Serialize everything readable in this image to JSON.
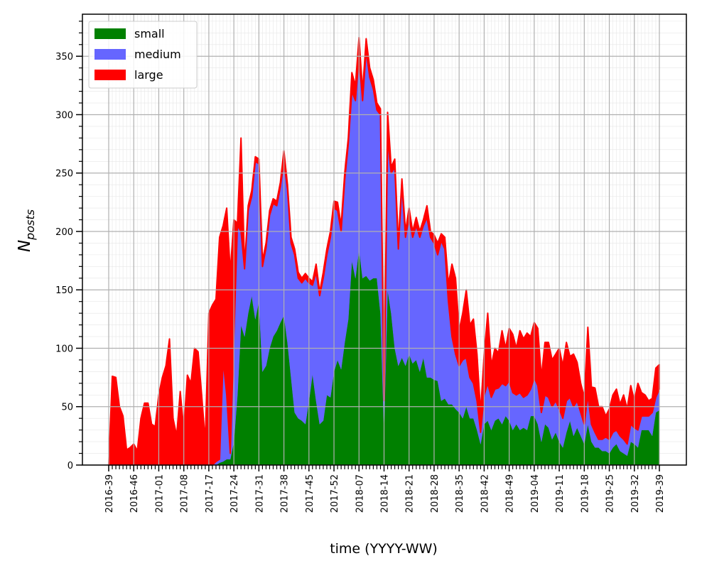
{
  "chart_data": {
    "type": "stacked_area",
    "xlabel": "time (YYYY-WW)",
    "ylabel": {
      "main": "N",
      "sub": "posts"
    },
    "categories": [
      "2016-39",
      null,
      null,
      null,
      null,
      null,
      null,
      "2016-46",
      null,
      null,
      null,
      null,
      null,
      null,
      "2017-01",
      null,
      null,
      null,
      null,
      null,
      null,
      "2017-08",
      null,
      null,
      null,
      null,
      null,
      null,
      "2017-17",
      null,
      null,
      null,
      null,
      null,
      null,
      "2017-24",
      null,
      null,
      null,
      null,
      null,
      null,
      "2017-31",
      null,
      null,
      null,
      null,
      null,
      null,
      "2017-38",
      null,
      null,
      null,
      null,
      null,
      null,
      "2017-45",
      null,
      null,
      null,
      null,
      null,
      null,
      "2017-52",
      null,
      null,
      null,
      null,
      null,
      null,
      "2018-07",
      null,
      null,
      null,
      null,
      null,
      null,
      "2018-14",
      null,
      null,
      null,
      null,
      null,
      null,
      "2018-21",
      null,
      null,
      null,
      null,
      null,
      null,
      "2018-28",
      null,
      null,
      null,
      null,
      null,
      null,
      "2018-35",
      null,
      null,
      null,
      null,
      null,
      null,
      "2018-42",
      null,
      null,
      null,
      null,
      null,
      null,
      "2018-49",
      null,
      null,
      null,
      null,
      null,
      null,
      "2019-04",
      null,
      null,
      null,
      null,
      null,
      null,
      "2019-11",
      null,
      null,
      null,
      null,
      null,
      null,
      "2019-18",
      null,
      null,
      null,
      null,
      null,
      null,
      "2019-25",
      null,
      null,
      null,
      null,
      null,
      null,
      "2019-32",
      null,
      null,
      null,
      null,
      null,
      null,
      "2019-39"
    ],
    "series": [
      {
        "name": "small",
        "color": "#008000",
        "values": [
          0,
          0,
          0,
          0,
          0,
          0,
          0,
          0,
          0,
          0,
          0,
          0,
          0,
          0,
          0,
          0,
          0,
          0,
          0,
          0,
          0,
          0,
          0,
          0,
          0,
          0,
          0,
          0,
          0,
          0,
          0,
          2,
          3,
          5,
          5,
          20,
          60,
          120,
          110,
          130,
          145,
          125,
          140,
          80,
          85,
          100,
          110,
          115,
          122,
          128,
          105,
          75,
          45,
          40,
          38,
          35,
          55,
          78,
          55,
          35,
          38,
          60,
          58,
          80,
          90,
          82,
          105,
          125,
          175,
          160,
          185,
          160,
          162,
          158,
          160,
          160,
          130,
          30,
          150,
          130,
          100,
          85,
          92,
          85,
          95,
          87,
          90,
          80,
          92,
          75,
          75,
          73,
          72,
          55,
          57,
          52,
          52,
          48,
          45,
          40,
          50,
          40,
          40,
          30,
          18,
          35,
          38,
          30,
          38,
          40,
          35,
          42,
          38,
          30,
          35,
          30,
          32,
          30,
          42,
          42,
          35,
          20,
          35,
          32,
          22,
          28,
          20,
          15,
          28,
          38,
          25,
          32,
          25,
          18,
          35,
          20,
          15,
          15,
          12,
          12,
          10,
          15,
          18,
          12,
          10,
          8,
          20,
          18,
          15,
          30,
          30,
          30,
          25,
          45,
          47
        ]
      },
      {
        "name": "medium",
        "color": "#6666ff",
        "values": [
          0,
          0,
          0,
          0,
          0,
          0,
          0,
          0,
          0,
          0,
          0,
          0,
          0,
          0,
          0,
          0,
          0,
          0,
          0,
          0,
          0,
          0,
          0,
          0,
          0,
          0,
          0,
          0,
          0,
          0,
          3,
          3,
          87,
          55,
          5,
          90,
          145,
          80,
          58,
          88,
          85,
          135,
          118,
          90,
          101,
          114,
          114,
          107,
          116,
          132,
          131,
          115,
          135,
          120,
          118,
          125,
          101,
          76,
          110,
          110,
          122,
          120,
          137,
          140,
          128,
          118,
          139,
          150,
          145,
          152,
          165,
          152,
          193,
          174,
          162,
          144,
          170,
          25,
          130,
          120,
          155,
          100,
          148,
          110,
          117,
          108,
          115,
          115,
          113,
          137,
          120,
          117,
          108,
          137,
          128,
          88,
          58,
          47,
          40,
          50,
          42,
          35,
          30,
          25,
          10,
          25,
          32,
          28,
          27,
          26,
          35,
          26,
          34,
          32,
          25,
          32,
          26,
          30,
          23,
          33,
          33,
          25,
          25,
          26,
          28,
          27,
          28,
          25,
          27,
          20,
          25,
          23,
          20,
          17,
          25,
          15,
          13,
          7,
          10,
          12,
          12,
          13,
          12,
          13,
          12,
          10,
          15,
          14,
          15,
          12,
          12,
          12,
          20,
          13,
          18
        ]
      },
      {
        "name": "large",
        "color": "#ff0000",
        "values": [
          0,
          76,
          75,
          50,
          42,
          13,
          15,
          18,
          12,
          40,
          53,
          53,
          35,
          33,
          60,
          75,
          85,
          108,
          40,
          25,
          63,
          30,
          77,
          70,
          100,
          97,
          60,
          20,
          130,
          137,
          139,
          190,
          115,
          160,
          155,
          100,
          2,
          80,
          2,
          4,
          5,
          4,
          4,
          5,
          4,
          4,
          4,
          4,
          4,
          9,
          4,
          5,
          5,
          5,
          4,
          4,
          4,
          3,
          7,
          3,
          5,
          5,
          5,
          6,
          7,
          5,
          6,
          5,
          16,
          13,
          16,
          8,
          10,
          8,
          8,
          6,
          5,
          3,
          22,
          5,
          7,
          5,
          5,
          5,
          8,
          5,
          7,
          5,
          5,
          10,
          5,
          7,
          10,
          6,
          10,
          15,
          62,
          65,
          30,
          40,
          58,
          45,
          55,
          40,
          17,
          35,
          60,
          27,
          35,
          30,
          45,
          32,
          45,
          50,
          40,
          53,
          50,
          53,
          45,
          47,
          49,
          30,
          45,
          47,
          40,
          40,
          52,
          45,
          50,
          35,
          45,
          33,
          25,
          23,
          58,
          32,
          38,
          28,
          28,
          18,
          26,
          32,
          35,
          27,
          38,
          30,
          33,
          23,
          40,
          20,
          18,
          13,
          12,
          25,
          21
        ]
      }
    ],
    "ylim": [
      0,
      386
    ],
    "yticks": [
      0,
      50,
      100,
      150,
      200,
      250,
      300,
      350
    ],
    "yticks_minor": [
      10,
      20,
      30,
      40,
      60,
      70,
      80,
      90,
      110,
      120,
      130,
      140,
      160,
      170,
      180,
      190,
      210,
      220,
      230,
      240,
      260,
      270,
      280,
      290,
      310,
      320,
      330,
      340,
      360,
      370,
      380
    ],
    "grid": true,
    "legend": "upper left"
  }
}
